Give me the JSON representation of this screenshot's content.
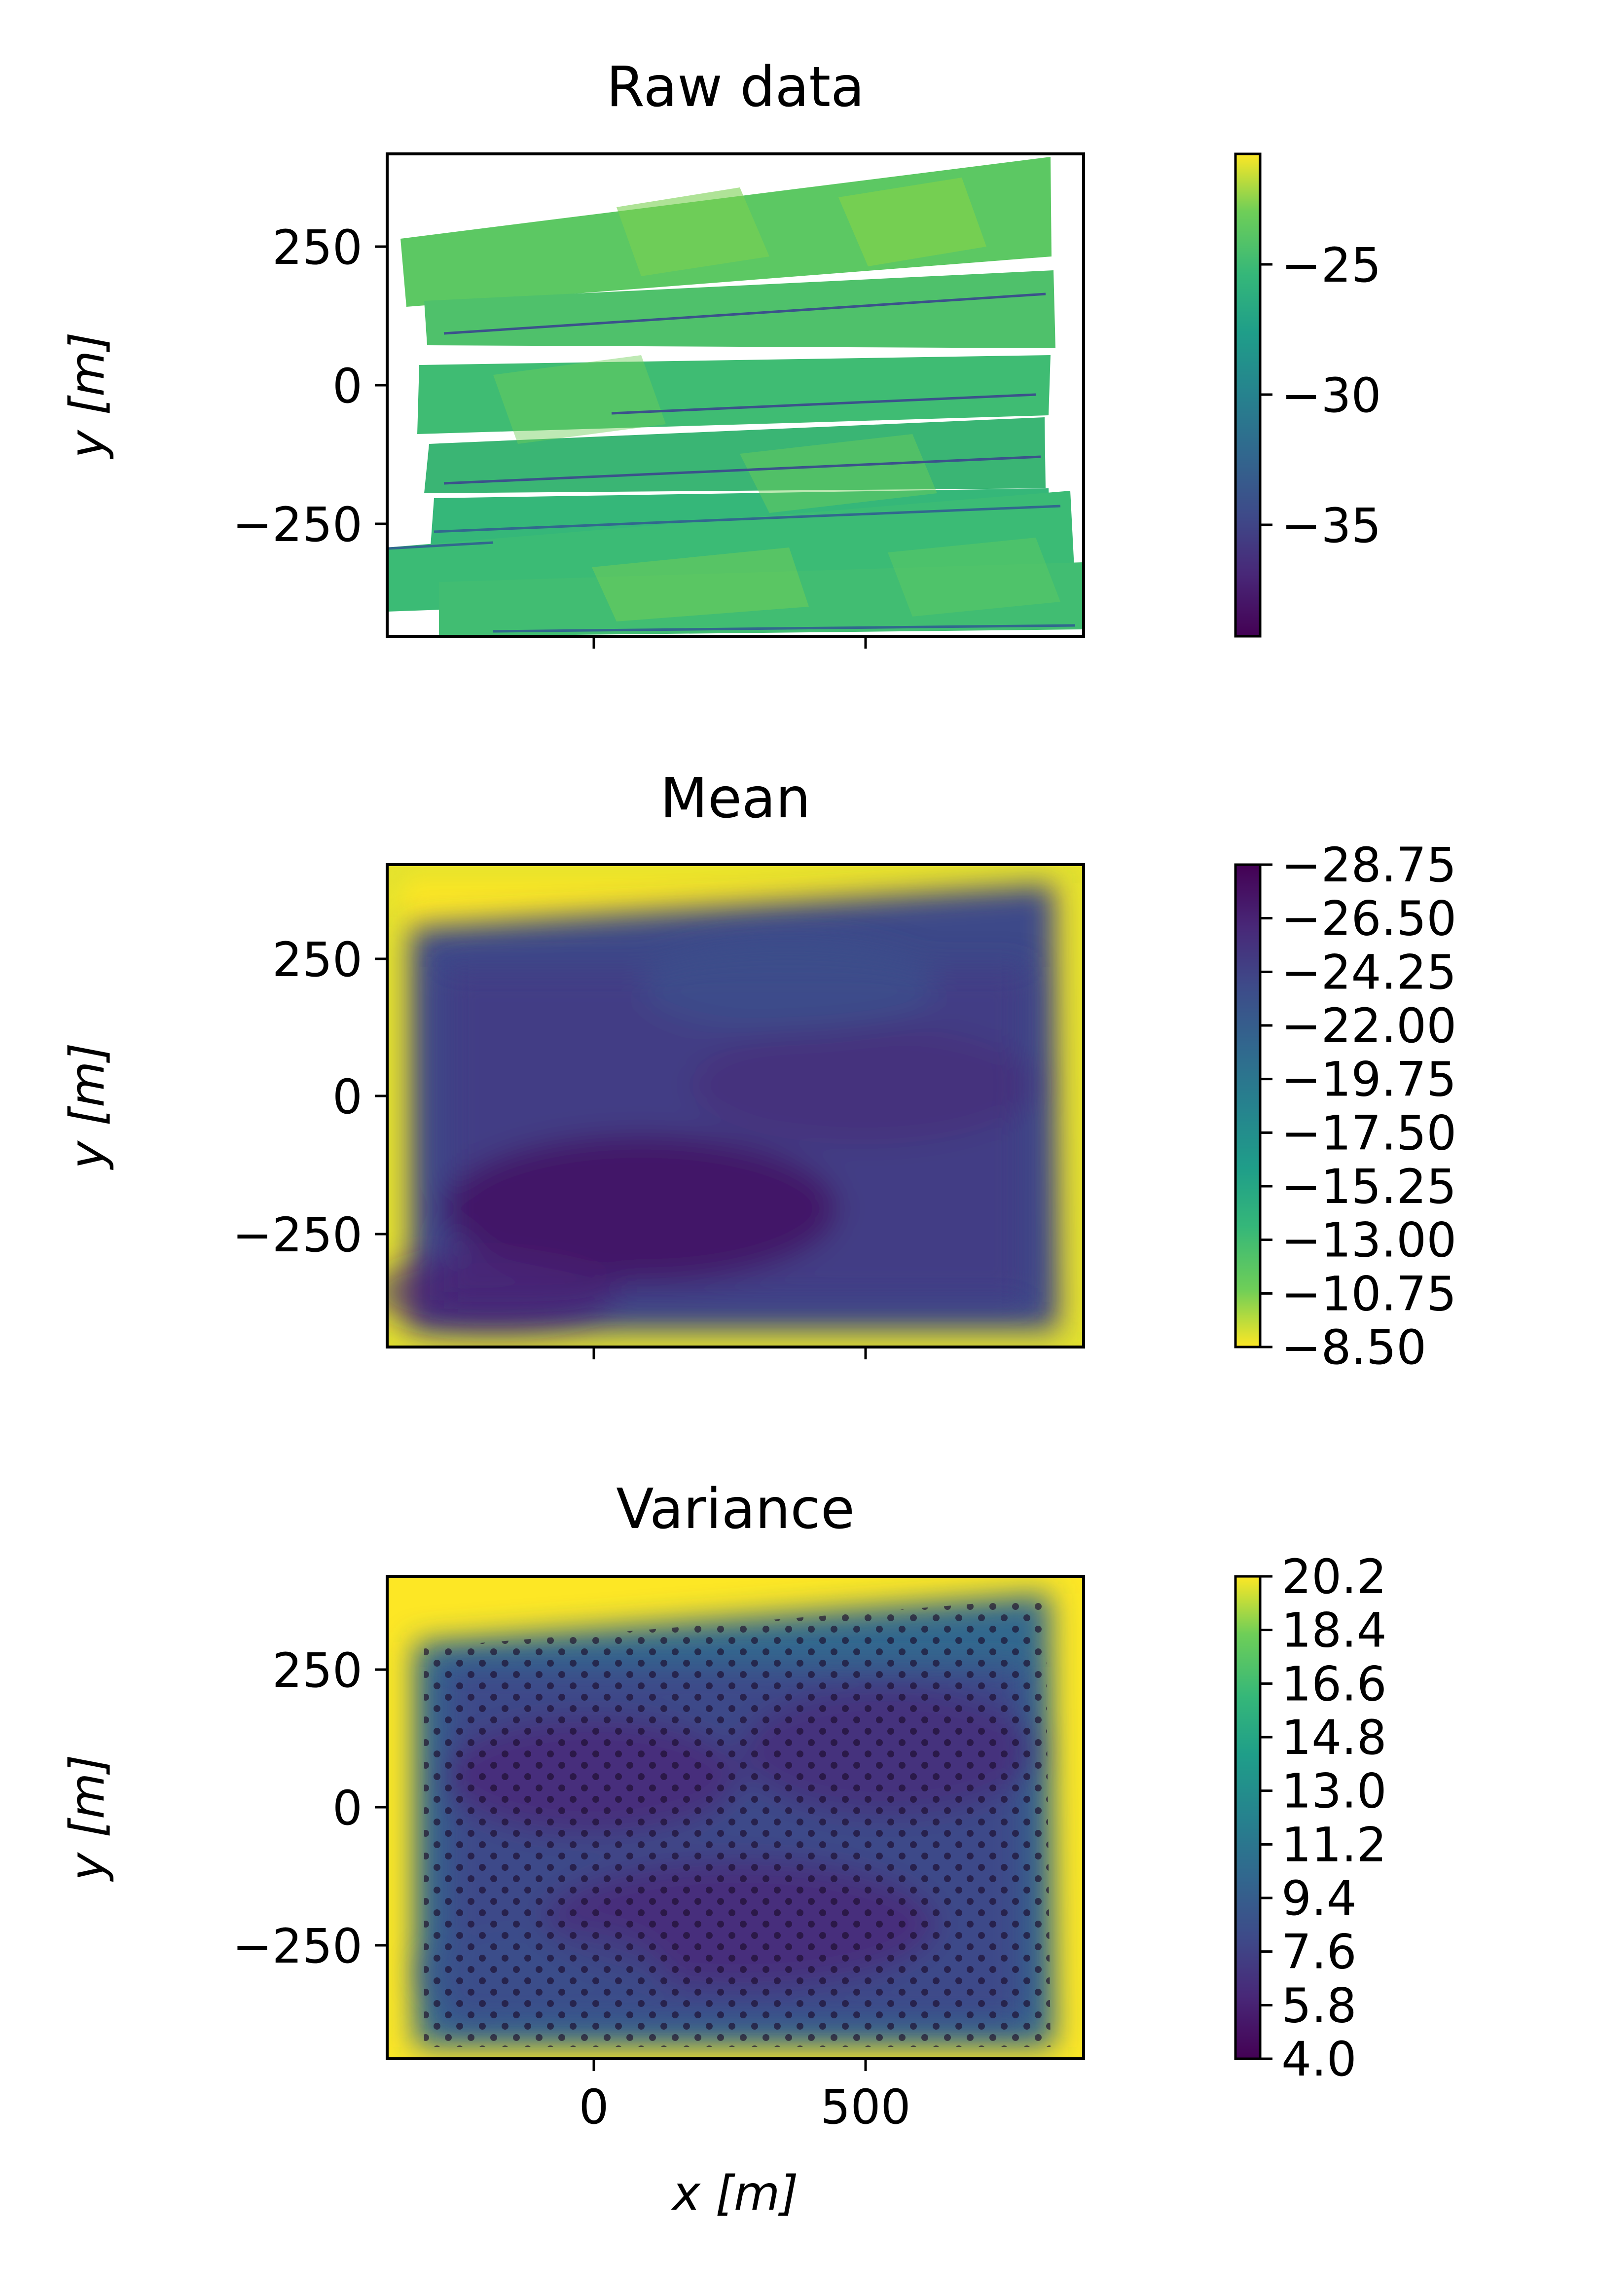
{
  "chart_data": [
    {
      "type": "heatmap",
      "title": "Raw data",
      "ylabel": "y [m]",
      "xlabel": "",
      "xlim": [
        -380,
        900
      ],
      "ylim": [
        -460,
        430
      ],
      "xticks": [
        0,
        500
      ],
      "show_xticklabels": false,
      "yticks": [
        250,
        0,
        -250
      ],
      "ytick_labels": [
        "250",
        "0",
        "−250"
      ],
      "colormap": "viridis",
      "colorbar": {
        "min": -39.5,
        "max": -19.5,
        "ticks": [
          -25,
          -30,
          -35
        ],
        "labels": [
          "−25",
          "−30",
          "−35"
        ],
        "reversed": false
      },
      "field": "survey swaths of bathymetry depth, values mostly between −33 and −22, several tilted overlapping strips with blank background"
    },
    {
      "type": "heatmap",
      "title": "Mean",
      "ylabel": "y [m]",
      "xlabel": "",
      "xlim": [
        -380,
        900
      ],
      "ylim": [
        -460,
        430
      ],
      "xticks": [
        0,
        500
      ],
      "show_xticklabels": false,
      "yticks": [
        250,
        0,
        -250
      ],
      "ytick_labels": [
        "250",
        "0",
        "−250"
      ],
      "colormap": "viridis",
      "colorbar": {
        "min": -28.75,
        "max": -8.5,
        "reversed": true,
        "ticks": [
          -28.75,
          -26.5,
          -24.25,
          -22.0,
          -19.75,
          -17.5,
          -15.25,
          -13.0,
          -10.75,
          -8.5
        ],
        "labels": [
          "−28.75",
          "−26.50",
          "−24.25",
          "−22.00",
          "−19.75",
          "−17.50",
          "−15.25",
          "−13.00",
          "−10.75",
          "−8.50"
        ]
      },
      "field": "smooth mean depth; dark purple interior, yellow/green at left, right and top borders outside data coverage"
    },
    {
      "type": "heatmap",
      "title": "Variance",
      "ylabel": "y [m]",
      "xlabel": "x [m]",
      "xlim": [
        -380,
        900
      ],
      "ylim": [
        -460,
        430
      ],
      "xticks": [
        0,
        500
      ],
      "xtick_labels": [
        "0",
        "500"
      ],
      "show_xticklabels": true,
      "yticks": [
        250,
        0,
        -250
      ],
      "ytick_labels": [
        "250",
        "0",
        "−250"
      ],
      "colormap": "viridis",
      "colorbar": {
        "min": 4.0,
        "max": 20.2,
        "reversed": false,
        "ticks": [
          20.2,
          18.4,
          16.6,
          14.8,
          13.0,
          11.2,
          9.4,
          7.6,
          5.8,
          4.0
        ],
        "labels": [
          "20.2",
          "18.4",
          "16.6",
          "14.8",
          "13.0",
          "11.2",
          "9.4",
          "7.6",
          "5.8",
          "4.0"
        ]
      },
      "field": "low variance interior with dense black dots marking observation locations, high variance (yellow) at left, right and top borders"
    }
  ]
}
